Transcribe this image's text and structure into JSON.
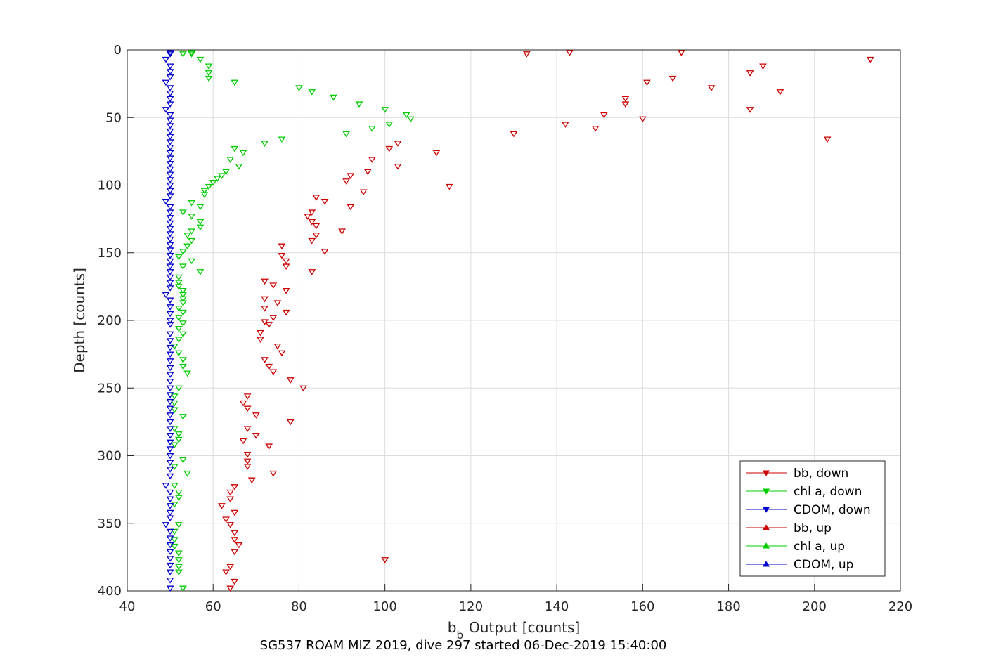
{
  "chart_data": {
    "type": "scatter",
    "title": "SG537 ROAM MIZ 2019, dive 297 started 06-Dec-2019 15:40:00",
    "xlabel": "Output [counts]",
    "xlabel_prefix": "b",
    "xlabel_sub": "b",
    "ylabel": "Depth [counts]",
    "xlim": [
      40,
      220
    ],
    "ylim": [
      0,
      400
    ],
    "y_reversed": true,
    "grid": true,
    "legend_position": "bottom-right",
    "xticks": [
      40,
      60,
      80,
      100,
      120,
      140,
      160,
      180,
      200,
      220
    ],
    "yticks": [
      0,
      50,
      100,
      150,
      200,
      250,
      300,
      350,
      400
    ],
    "series": [
      {
        "name": "bb, down",
        "color": "#cc0000",
        "marker": "triangle-down",
        "points": [
          [
            133,
            3
          ],
          [
            143,
            2
          ],
          [
            169,
            2
          ],
          [
            213,
            7
          ],
          [
            188,
            12
          ],
          [
            185,
            17
          ],
          [
            167,
            21
          ],
          [
            161,
            24
          ],
          [
            176,
            28
          ],
          [
            192,
            31
          ],
          [
            156,
            36
          ],
          [
            156,
            40
          ],
          [
            185,
            44
          ],
          [
            151,
            48
          ],
          [
            160,
            51
          ],
          [
            142,
            55
          ],
          [
            149,
            58
          ],
          [
            130,
            62
          ],
          [
            203,
            66
          ],
          [
            103,
            69
          ],
          [
            101,
            73
          ],
          [
            112,
            76
          ],
          [
            97,
            81
          ],
          [
            103,
            86
          ],
          [
            96,
            90
          ],
          [
            92,
            93
          ],
          [
            91,
            97
          ],
          [
            115,
            101
          ],
          [
            95,
            105
          ],
          [
            84,
            109
          ],
          [
            86,
            112
          ],
          [
            92,
            116
          ],
          [
            83,
            120
          ],
          [
            82,
            123
          ],
          [
            83,
            127
          ],
          [
            84,
            130
          ],
          [
            90,
            134
          ],
          [
            84,
            137
          ],
          [
            83,
            141
          ],
          [
            76,
            145
          ],
          [
            86,
            149
          ],
          [
            76,
            152
          ],
          [
            77,
            156
          ],
          [
            77,
            160
          ],
          [
            83,
            164
          ],
          [
            72,
            171
          ],
          [
            74,
            174
          ],
          [
            77,
            178
          ],
          [
            72,
            184
          ],
          [
            75,
            187
          ],
          [
            72,
            191
          ],
          [
            77,
            194
          ],
          [
            74,
            198
          ],
          [
            72,
            201
          ],
          [
            73,
            203
          ],
          [
            71,
            209
          ],
          [
            71,
            214
          ],
          [
            75,
            219
          ],
          [
            76,
            224
          ],
          [
            72,
            229
          ],
          [
            73,
            234
          ],
          [
            74,
            238
          ],
          [
            78,
            244
          ],
          [
            81,
            250
          ],
          [
            68,
            256
          ],
          [
            67,
            261
          ],
          [
            68,
            265
          ],
          [
            70,
            270
          ],
          [
            78,
            275
          ],
          [
            68,
            280
          ],
          [
            70,
            285
          ],
          [
            67,
            289
          ],
          [
            73,
            293
          ],
          [
            68,
            299
          ],
          [
            68,
            304
          ],
          [
            68,
            308
          ],
          [
            69,
            318
          ],
          [
            74,
            313
          ],
          [
            65,
            323
          ],
          [
            64,
            327
          ],
          [
            64,
            332
          ],
          [
            62,
            337
          ],
          [
            65,
            342
          ],
          [
            63,
            347
          ],
          [
            64,
            351
          ],
          [
            65,
            357
          ],
          [
            65,
            362
          ],
          [
            66,
            366
          ],
          [
            65,
            371
          ],
          [
            100,
            377
          ],
          [
            64,
            382
          ],
          [
            63,
            386
          ],
          [
            65,
            393
          ],
          [
            64,
            398
          ]
        ]
      },
      {
        "name": "chl a, down",
        "color": "#00cc00",
        "marker": "triangle-down",
        "points": [
          [
            53,
            3
          ],
          [
            55,
            3
          ],
          [
            55,
            2
          ],
          [
            57,
            7
          ],
          [
            59,
            12
          ],
          [
            59,
            17
          ],
          [
            59,
            21
          ],
          [
            65,
            24
          ],
          [
            80,
            28
          ],
          [
            83,
            31
          ],
          [
            88,
            35
          ],
          [
            94,
            40
          ],
          [
            100,
            44
          ],
          [
            105,
            48
          ],
          [
            106,
            51
          ],
          [
            101,
            55
          ],
          [
            97,
            58
          ],
          [
            91,
            62
          ],
          [
            76,
            66
          ],
          [
            72,
            69
          ],
          [
            65,
            73
          ],
          [
            67,
            76
          ],
          [
            64,
            81
          ],
          [
            66,
            86
          ],
          [
            63,
            90
          ],
          [
            62,
            93
          ],
          [
            61,
            95
          ],
          [
            60,
            98
          ],
          [
            59,
            101
          ],
          [
            58,
            104
          ],
          [
            58,
            107
          ],
          [
            55,
            113
          ],
          [
            57,
            116
          ],
          [
            53,
            120
          ],
          [
            55,
            123
          ],
          [
            57,
            127
          ],
          [
            57,
            131
          ],
          [
            55,
            134
          ],
          [
            54,
            137
          ],
          [
            55,
            141
          ],
          [
            54,
            145
          ],
          [
            53,
            149
          ],
          [
            52,
            153
          ],
          [
            55,
            156
          ],
          [
            53,
            160
          ],
          [
            57,
            164
          ],
          [
            52,
            168
          ],
          [
            52,
            172
          ],
          [
            52,
            175
          ],
          [
            53,
            178
          ],
          [
            53,
            181
          ],
          [
            53,
            184
          ],
          [
            53,
            187
          ],
          [
            52,
            191
          ],
          [
            53,
            194
          ],
          [
            52,
            198
          ],
          [
            53,
            202
          ],
          [
            52,
            206
          ],
          [
            53,
            210
          ],
          [
            52,
            214
          ],
          [
            51,
            219
          ],
          [
            52,
            224
          ],
          [
            53,
            229
          ],
          [
            53,
            234
          ],
          [
            54,
            239
          ],
          [
            52,
            250
          ],
          [
            51,
            256
          ],
          [
            51,
            261
          ],
          [
            51,
            266
          ],
          [
            53,
            271
          ],
          [
            51,
            280
          ],
          [
            52,
            284
          ],
          [
            52,
            288
          ],
          [
            51,
            292
          ],
          [
            53,
            303
          ],
          [
            51,
            308
          ],
          [
            54,
            313
          ],
          [
            51,
            322
          ],
          [
            52,
            327
          ],
          [
            52,
            331
          ],
          [
            51,
            336
          ],
          [
            52,
            351
          ],
          [
            51,
            356
          ],
          [
            51,
            362
          ],
          [
            51,
            367
          ],
          [
            52,
            372
          ],
          [
            52,
            377
          ],
          [
            52,
            382
          ],
          [
            52,
            386
          ],
          [
            53,
            398
          ]
        ]
      },
      {
        "name": "CDOM, down",
        "color": "#0000cc",
        "marker": "triangle-down",
        "points": [
          [
            50,
            2
          ],
          [
            50,
            3
          ],
          [
            49,
            7
          ],
          [
            50,
            12
          ],
          [
            50,
            16
          ],
          [
            50,
            20
          ],
          [
            49,
            24
          ],
          [
            50,
            28
          ],
          [
            50,
            32
          ],
          [
            50,
            36
          ],
          [
            50,
            40
          ],
          [
            49,
            44
          ],
          [
            50,
            48
          ],
          [
            50,
            52
          ],
          [
            50,
            56
          ],
          [
            50,
            60
          ],
          [
            50,
            64
          ],
          [
            50,
            68
          ],
          [
            50,
            72
          ],
          [
            50,
            76
          ],
          [
            50,
            80
          ],
          [
            50,
            84
          ],
          [
            50,
            88
          ],
          [
            50,
            92
          ],
          [
            50,
            96
          ],
          [
            50,
            100
          ],
          [
            50,
            104
          ],
          [
            50,
            108
          ],
          [
            49,
            112
          ],
          [
            50,
            116
          ],
          [
            50,
            120
          ],
          [
            50,
            124
          ],
          [
            50,
            128
          ],
          [
            50,
            132
          ],
          [
            50,
            136
          ],
          [
            50,
            140
          ],
          [
            50,
            144
          ],
          [
            50,
            148
          ],
          [
            50,
            152
          ],
          [
            50,
            156
          ],
          [
            50,
            160
          ],
          [
            50,
            164
          ],
          [
            50,
            168
          ],
          [
            50,
            172
          ],
          [
            50,
            176
          ],
          [
            49,
            181
          ],
          [
            50,
            185
          ],
          [
            50,
            190
          ],
          [
            50,
            195
          ],
          [
            50,
            200
          ],
          [
            50,
            203
          ],
          [
            50,
            210
          ],
          [
            50,
            215
          ],
          [
            50,
            220
          ],
          [
            50,
            225
          ],
          [
            50,
            230
          ],
          [
            50,
            235
          ],
          [
            50,
            240
          ],
          [
            50,
            245
          ],
          [
            50,
            250
          ],
          [
            50,
            255
          ],
          [
            50,
            260
          ],
          [
            50,
            265
          ],
          [
            50,
            270
          ],
          [
            50,
            275
          ],
          [
            50,
            280
          ],
          [
            50,
            285
          ],
          [
            50,
            290
          ],
          [
            50,
            295
          ],
          [
            50,
            300
          ],
          [
            50,
            305
          ],
          [
            50,
            310
          ],
          [
            50,
            315
          ],
          [
            49,
            322
          ],
          [
            50,
            327
          ],
          [
            50,
            332
          ],
          [
            50,
            337
          ],
          [
            50,
            342
          ],
          [
            50,
            346
          ],
          [
            49,
            351
          ],
          [
            50,
            356
          ],
          [
            50,
            361
          ],
          [
            50,
            366
          ],
          [
            50,
            371
          ],
          [
            50,
            376
          ],
          [
            50,
            381
          ],
          [
            50,
            386
          ],
          [
            50,
            392
          ],
          [
            50,
            398
          ]
        ]
      },
      {
        "name": "bb, up",
        "color": "#cc0000",
        "marker": "triangle-up",
        "points": []
      },
      {
        "name": "chl a, up",
        "color": "#00cc00",
        "marker": "triangle-up",
        "points": []
      },
      {
        "name": "CDOM, up",
        "color": "#0000cc",
        "marker": "triangle-up",
        "points": []
      }
    ]
  }
}
